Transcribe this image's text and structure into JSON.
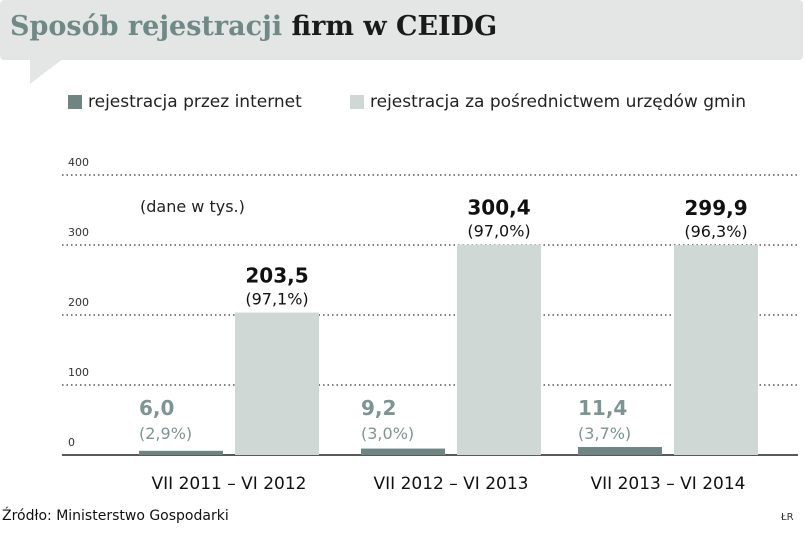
{
  "title": {
    "part1": "Sposób rejestracji",
    "part2": "firm w CEIDG"
  },
  "colors": {
    "internet": "#6e8583",
    "urzedy": "#d0d8d6",
    "grid": "#333333",
    "internet_label": "#7d9592"
  },
  "legend": [
    {
      "label": "rejestracja przez internet",
      "color": "#6e8583"
    },
    {
      "label": "rejestracja za pośrednictwem urzędów gmin",
      "color": "#d0d8d6"
    }
  ],
  "chart_data": {
    "type": "bar",
    "categories": [
      "VII 2011 – VI 2012",
      "VII 2012 – VI 2013",
      "VII 2013 – VI 2014"
    ],
    "series": [
      {
        "name": "rejestracja przez internet",
        "values": [
          6.0,
          9.2,
          11.4
        ],
        "value_labels": [
          "6,0",
          "9,2",
          "11,4"
        ],
        "share_labels": [
          "(2,9%)",
          "(3,0%)",
          "(3,7%)"
        ]
      },
      {
        "name": "rejestracja za pośrednictwem urzędów gmin",
        "values": [
          203.5,
          300.4,
          299.9
        ],
        "value_labels": [
          "203,5",
          "300,4",
          "299,9"
        ],
        "share_labels": [
          "(97,1%)",
          "(97,0%)",
          "(96,3%)"
        ]
      }
    ],
    "yticks": [
      "400",
      "300",
      "200",
      "100",
      "0"
    ],
    "ylim": [
      0,
      400
    ],
    "note": "(dane w tys.)",
    "grid": true,
    "legend_position": "top"
  },
  "source": "Źródło: Ministerstwo Gospodarki",
  "initials": "ŁR"
}
